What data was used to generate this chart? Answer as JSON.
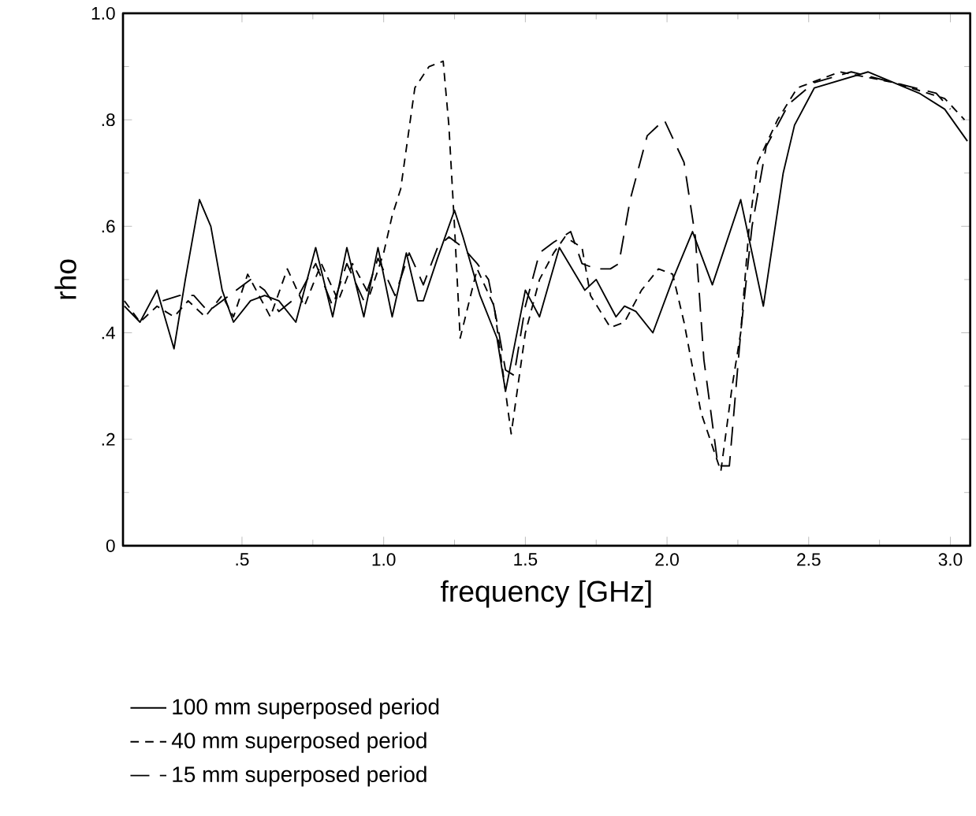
{
  "chart_data": {
    "type": "line",
    "xlabel": "frequency [GHz]",
    "ylabel": "rho",
    "xlim": [
      0.08,
      3.07
    ],
    "ylim": [
      0,
      1
    ],
    "xticks": [
      {
        "value": 0.5,
        "label": ".5"
      },
      {
        "value": 1.0,
        "label": "1.0"
      },
      {
        "value": 1.5,
        "label": "1.5"
      },
      {
        "value": 2.0,
        "label": "2.0"
      },
      {
        "value": 2.5,
        "label": "2.5"
      },
      {
        "value": 3.0,
        "label": "3.0"
      }
    ],
    "yticks": [
      0,
      {
        "value": 0.2,
        "label": ".2"
      },
      {
        "value": 0.4,
        "label": ".4"
      },
      {
        "value": 0.6,
        "label": ".6"
      },
      {
        "value": 0.8,
        "label": ".8"
      },
      {
        "value": 1.0,
        "label": "1.0"
      }
    ],
    "grid": false,
    "legend": "bottom",
    "series": [
      {
        "name": "100 mm superposed period",
        "color": "#000000",
        "line_style": "solid",
        "x": [
          0.085,
          0.14,
          0.2,
          0.26,
          0.3,
          0.35,
          0.39,
          0.43,
          0.47,
          0.53,
          0.58,
          0.63,
          0.69,
          0.76,
          0.82,
          0.87,
          0.93,
          0.98,
          1.03,
          1.08,
          1.12,
          1.14,
          1.19,
          1.25,
          1.28,
          1.34,
          1.4,
          1.43,
          1.5,
          1.55,
          1.62,
          1.71,
          1.75,
          1.82,
          1.85,
          1.89,
          1.95,
          2.02,
          2.09,
          2.16,
          2.26,
          2.34,
          2.41,
          2.45,
          2.52,
          2.71,
          2.89,
          2.98,
          3.06
        ],
        "values": [
          0.45,
          0.42,
          0.48,
          0.37,
          0.5,
          0.65,
          0.6,
          0.48,
          0.42,
          0.46,
          0.47,
          0.46,
          0.42,
          0.56,
          0.43,
          0.56,
          0.43,
          0.56,
          0.43,
          0.55,
          0.46,
          0.46,
          0.54,
          0.63,
          0.58,
          0.47,
          0.39,
          0.29,
          0.48,
          0.43,
          0.56,
          0.48,
          0.5,
          0.43,
          0.45,
          0.44,
          0.4,
          0.5,
          0.59,
          0.49,
          0.65,
          0.45,
          0.7,
          0.79,
          0.86,
          0.89,
          0.85,
          0.82,
          0.76
        ]
      },
      {
        "name": "40 mm superposed period",
        "color": "#000000",
        "line_style": "dashed",
        "x": [
          0.085,
          0.14,
          0.2,
          0.26,
          0.31,
          0.37,
          0.43,
          0.47,
          0.52,
          0.6,
          0.66,
          0.72,
          0.78,
          0.84,
          0.89,
          0.95,
          1.0,
          1.03,
          1.06,
          1.11,
          1.16,
          1.21,
          1.23,
          1.25,
          1.27,
          1.33,
          1.39,
          1.45,
          1.5,
          1.55,
          1.6,
          1.64,
          1.7,
          1.73,
          1.8,
          1.85,
          1.91,
          1.97,
          2.02,
          2.06,
          2.12,
          2.19,
          2.23,
          2.26,
          2.29,
          2.32,
          2.39,
          2.46,
          2.61,
          2.8,
          2.98,
          3.05
        ],
        "values": [
          0.46,
          0.42,
          0.45,
          0.43,
          0.46,
          0.43,
          0.47,
          0.43,
          0.51,
          0.43,
          0.52,
          0.45,
          0.53,
          0.46,
          0.53,
          0.47,
          0.55,
          0.62,
          0.67,
          0.86,
          0.9,
          0.91,
          0.79,
          0.6,
          0.39,
          0.52,
          0.45,
          0.21,
          0.4,
          0.5,
          0.55,
          0.58,
          0.56,
          0.47,
          0.41,
          0.42,
          0.48,
          0.52,
          0.51,
          0.42,
          0.25,
          0.14,
          0.3,
          0.4,
          0.6,
          0.72,
          0.8,
          0.86,
          0.89,
          0.87,
          0.84,
          0.8
        ]
      },
      {
        "name": "15 mm superposed period",
        "color": "#000000",
        "line_style": "dashed",
        "x": [
          0.22,
          0.28,
          0.33,
          0.38,
          0.43,
          0.48,
          0.53,
          0.58,
          0.63,
          0.7,
          0.76,
          0.82,
          0.87,
          0.93,
          0.98,
          1.04,
          1.09,
          1.14,
          1.19,
          1.23,
          1.28,
          1.33,
          1.37,
          1.4,
          1.43,
          1.46,
          1.5,
          1.55,
          1.6,
          1.66,
          1.7,
          1.75,
          1.8,
          1.83,
          1.87,
          1.93,
          1.99,
          2.06,
          2.1,
          2.13,
          2.18,
          2.22,
          2.26,
          2.3,
          2.35,
          2.43,
          2.52,
          2.65,
          2.8,
          2.95,
          3.0
        ],
        "values": [
          0.46,
          0.47,
          0.47,
          0.44,
          0.46,
          0.48,
          0.5,
          0.48,
          0.44,
          0.47,
          0.53,
          0.45,
          0.53,
          0.46,
          0.54,
          0.47,
          0.55,
          0.49,
          0.56,
          0.58,
          0.56,
          0.53,
          0.5,
          0.42,
          0.33,
          0.32,
          0.45,
          0.55,
          0.57,
          0.59,
          0.53,
          0.52,
          0.52,
          0.53,
          0.65,
          0.77,
          0.8,
          0.72,
          0.58,
          0.35,
          0.15,
          0.15,
          0.4,
          0.6,
          0.75,
          0.83,
          0.87,
          0.89,
          0.87,
          0.85,
          0.82
        ]
      }
    ]
  }
}
